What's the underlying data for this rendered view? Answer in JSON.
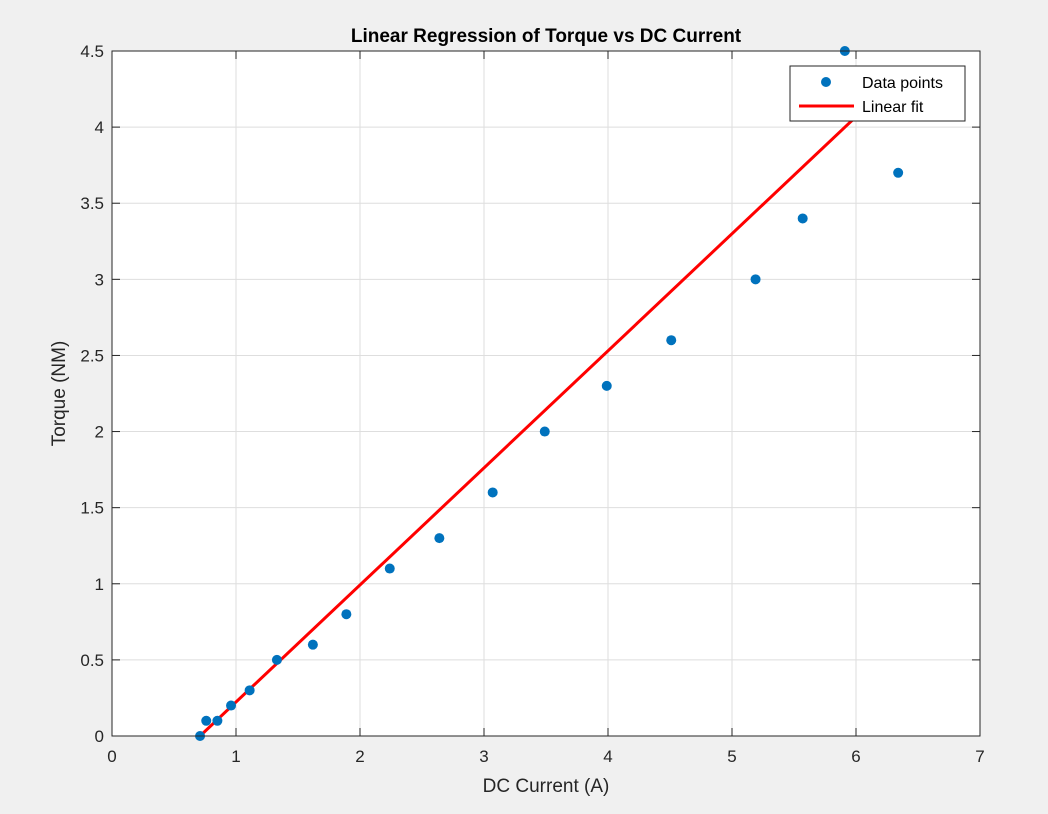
{
  "chart_data": {
    "type": "scatter",
    "title": "Linear Regression of Torque vs DC Current",
    "xlabel": "DC Current (A)",
    "ylabel": "Torque (NM)",
    "xlim": [
      0,
      7
    ],
    "ylim": [
      0,
      4.5
    ],
    "xticks": [
      0,
      1,
      2,
      3,
      4,
      5,
      6,
      7
    ],
    "yticks": [
      0,
      0.5,
      1,
      1.5,
      2,
      2.5,
      3,
      3.5,
      4,
      4.5
    ],
    "grid": true,
    "legend_position": "top-right",
    "series": [
      {
        "name": "Data points",
        "type": "scatter",
        "color": "#0072BD",
        "x": [
          0.71,
          0.76,
          0.85,
          0.96,
          1.11,
          1.33,
          1.62,
          1.89,
          2.24,
          2.64,
          3.07,
          3.49,
          3.99,
          4.51,
          5.19,
          5.57,
          5.91,
          6.34
        ],
        "y": [
          0.0,
          0.1,
          0.1,
          0.2,
          0.3,
          0.5,
          0.6,
          0.8,
          1.1,
          1.3,
          1.6,
          2.0,
          2.3,
          2.6,
          3.0,
          3.4,
          4.5,
          3.7
        ]
      },
      {
        "name": "Linear fit",
        "type": "line",
        "color": "#FF0000",
        "x": [
          0.71,
          6.34
        ],
        "y": [
          0.0,
          4.33
        ]
      }
    ]
  }
}
